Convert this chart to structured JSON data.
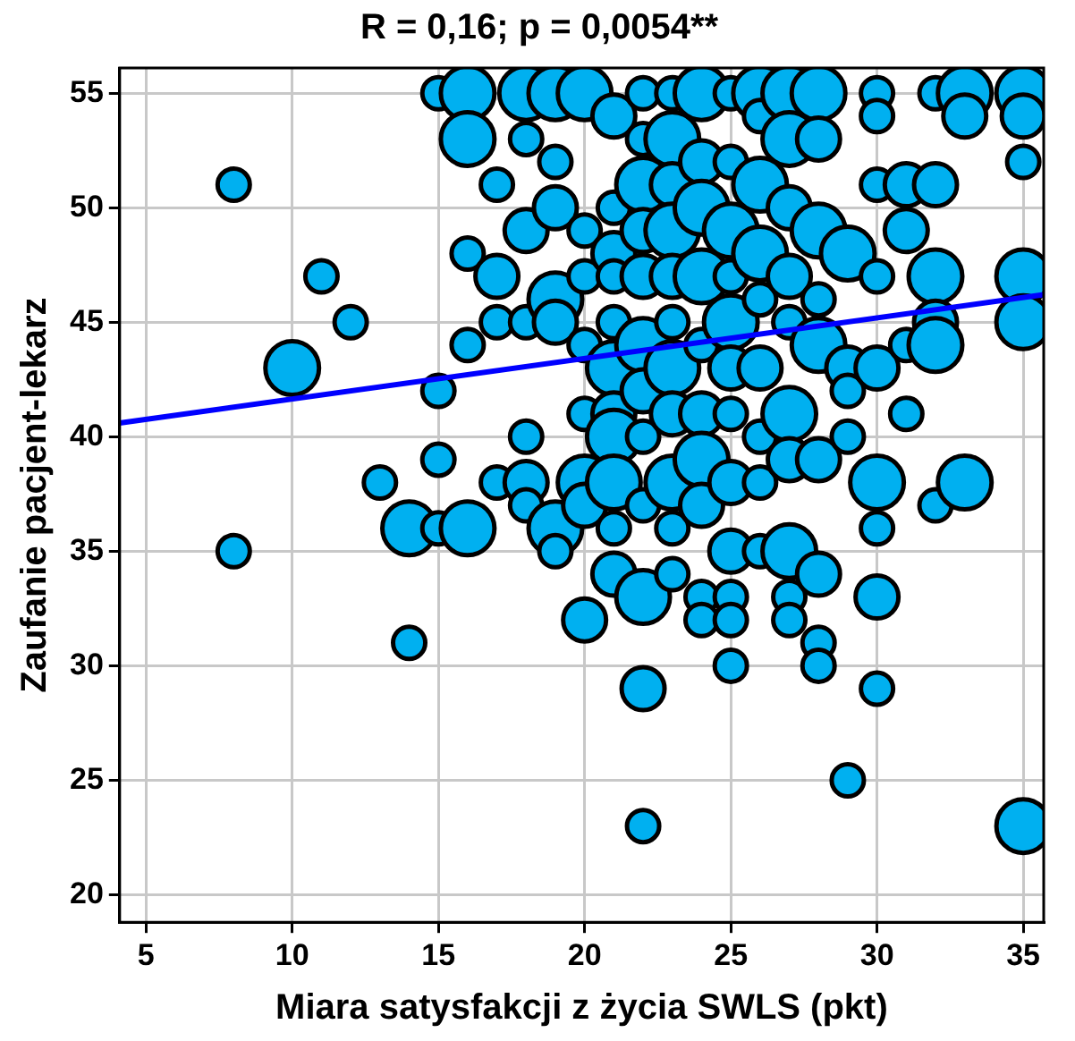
{
  "chart_data": {
    "type": "bubble",
    "title": "R = 0,16; p = 0,0054**",
    "xlabel": "Miara satysfakcji z życia SWLS (pkt)",
    "ylabel": "Zaufanie pacjent-lekarz",
    "xlim": [
      4.1,
      35.7
    ],
    "ylim": [
      18.8,
      56.1
    ],
    "xticks": [
      5,
      10,
      15,
      20,
      25,
      30,
      35
    ],
    "yticks": [
      20,
      25,
      30,
      35,
      40,
      45,
      50,
      55
    ],
    "grid": true,
    "legend": false,
    "series": [
      {
        "color": "#00b0f0",
        "x": [
          8,
          8,
          10,
          11,
          12,
          13,
          14,
          14,
          15,
          15,
          15,
          15,
          16,
          16,
          16,
          16,
          16,
          17,
          17,
          17,
          17,
          18,
          18,
          18,
          18,
          18,
          18,
          18,
          19,
          19,
          19,
          19,
          19,
          19,
          19,
          20,
          20,
          20,
          20,
          20,
          20,
          20,
          20,
          21,
          21,
          21,
          21,
          21,
          21,
          21,
          21,
          21,
          21,
          21,
          22,
          22,
          22,
          22,
          22,
          22,
          22,
          22,
          22,
          22,
          22,
          22,
          23,
          23,
          23,
          23,
          23,
          23,
          23,
          23,
          23,
          23,
          23,
          24,
          24,
          24,
          24,
          24,
          24,
          24,
          24,
          24,
          24,
          25,
          25,
          25,
          25,
          25,
          25,
          25,
          25,
          25,
          25,
          25,
          25,
          26,
          26,
          26,
          26,
          26,
          26,
          26,
          26,
          26,
          27,
          27,
          27,
          27,
          27,
          27,
          27,
          27,
          27,
          27,
          28,
          28,
          28,
          28,
          28,
          28,
          28,
          28,
          28,
          29,
          29,
          29,
          29,
          29,
          30,
          30,
          30,
          30,
          30,
          30,
          30,
          30,
          30,
          31,
          31,
          31,
          31,
          32,
          32,
          32,
          32,
          32,
          32,
          33,
          33,
          33,
          35,
          35,
          35,
          35,
          35,
          35
        ],
        "values": [
          51,
          35,
          43,
          47,
          45,
          38,
          36,
          31,
          55,
          42,
          39,
          36,
          55,
          53,
          48,
          44,
          36,
          51,
          47,
          45,
          38,
          55,
          53,
          49,
          45,
          40,
          38,
          37,
          55,
          52,
          50,
          46,
          45,
          36,
          35,
          55,
          49,
          47,
          44,
          41,
          38,
          37,
          32,
          54,
          50,
          48,
          47,
          45,
          43,
          41,
          40,
          38,
          36,
          34,
          55,
          53,
          51,
          49,
          47,
          44,
          42,
          40,
          37,
          33,
          29,
          23,
          55,
          53,
          51,
          49,
          47,
          45,
          43,
          41,
          38,
          36,
          34,
          55,
          52,
          50,
          47,
          44,
          41,
          39,
          37,
          33,
          32,
          55,
          52,
          49,
          47,
          45,
          43,
          41,
          38,
          35,
          33,
          32,
          30,
          55,
          54,
          51,
          48,
          46,
          43,
          40,
          38,
          35,
          55,
          53,
          50,
          47,
          45,
          41,
          39,
          35,
          33,
          32,
          55,
          53,
          49,
          46,
          44,
          39,
          34,
          31,
          30,
          48,
          43,
          42,
          40,
          25,
          55,
          54,
          51,
          47,
          43,
          38,
          36,
          33,
          29,
          51,
          49,
          44,
          41,
          55,
          51,
          47,
          45,
          44,
          37,
          55,
          54,
          38,
          55,
          54,
          52,
          47,
          45,
          23
        ],
        "sizes": [
          0.36,
          0.36,
          1,
          0.36,
          0.36,
          0.36,
          1,
          0.36,
          0.36,
          0.36,
          0.36,
          0.36,
          1,
          1,
          0.36,
          0.36,
          1,
          0.36,
          0.64,
          0.36,
          0.36,
          1,
          0.36,
          0.64,
          0.36,
          0.36,
          0.64,
          0.36,
          1,
          0.36,
          0.64,
          1,
          0.64,
          1,
          0.36,
          1,
          0.36,
          0.36,
          0.36,
          0.36,
          1,
          0.64,
          0.64,
          0.64,
          0.36,
          0.64,
          0.36,
          0.36,
          1,
          0.64,
          1,
          1,
          0.36,
          0.64,
          0.36,
          0.36,
          1,
          0.64,
          0.64,
          1,
          0.64,
          0.36,
          0.36,
          1,
          0.64,
          0.36,
          0.36,
          1,
          0.64,
          1,
          0.64,
          0.36,
          1,
          0.64,
          1,
          0.36,
          0.36,
          1,
          0.64,
          1,
          1,
          0.36,
          0.64,
          1,
          0.64,
          0.36,
          0.36,
          0.36,
          0.36,
          1,
          0.36,
          1,
          0.64,
          0.36,
          0.64,
          0.64,
          0.36,
          0.36,
          0.36,
          1,
          0.36,
          1,
          1,
          0.36,
          0.64,
          0.36,
          0.36,
          0.36,
          1,
          1,
          0.64,
          0.64,
          0.36,
          1,
          0.64,
          1,
          0.36,
          0.36,
          1,
          0.64,
          1,
          0.36,
          1,
          0.64,
          0.64,
          0.36,
          0.36,
          1,
          0.64,
          0.36,
          0.36,
          0.36,
          0.36,
          0.36,
          0.36,
          0.36,
          0.64,
          1,
          0.36,
          0.64,
          0.36,
          0.64,
          0.64,
          0.36,
          0.36,
          0.36,
          0.64,
          1,
          0.64,
          1,
          0.36,
          1,
          0.64,
          1,
          1,
          0.64,
          0.36,
          1,
          1,
          1
        ]
      },
      {
        "type": "line",
        "color": "#0000ff",
        "x": [
          4.1,
          35.7
        ],
        "values": [
          40.6,
          46.2
        ]
      }
    ]
  }
}
